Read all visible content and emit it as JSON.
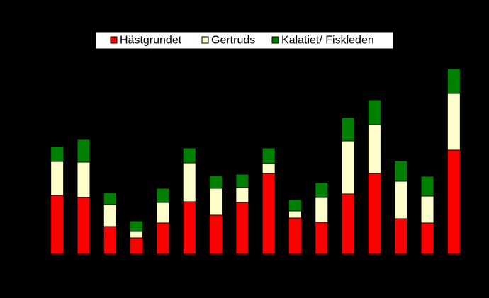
{
  "chart_data": {
    "type": "stacked-bar",
    "categories": [
      null,
      null,
      null,
      null,
      null,
      null,
      null,
      null,
      null,
      null,
      null,
      null,
      null,
      null,
      null,
      null
    ],
    "series": [
      {
        "name": "Hästgrundet",
        "color": "#ff0000",
        "values": [
          83,
          80,
          39,
          23,
          44,
          74,
          55,
          73,
          114,
          51,
          45,
          85,
          114,
          50,
          44,
          147
        ]
      },
      {
        "name": "Gertruds",
        "color": "#ffffcc",
        "values": [
          48,
          50,
          31,
          9,
          29,
          55,
          38,
          21,
          14,
          10,
          35,
          75,
          69,
          53,
          38,
          80
        ]
      },
      {
        "name": "Kalatiet/ Fiskleden",
        "color": "#008000",
        "values": [
          21,
          32,
          17,
          15,
          20,
          21,
          18,
          19,
          22,
          16,
          21,
          33,
          35,
          29,
          28,
          35
        ]
      }
    ],
    "ylim": [
      0,
      280
    ],
    "legend": "top"
  }
}
